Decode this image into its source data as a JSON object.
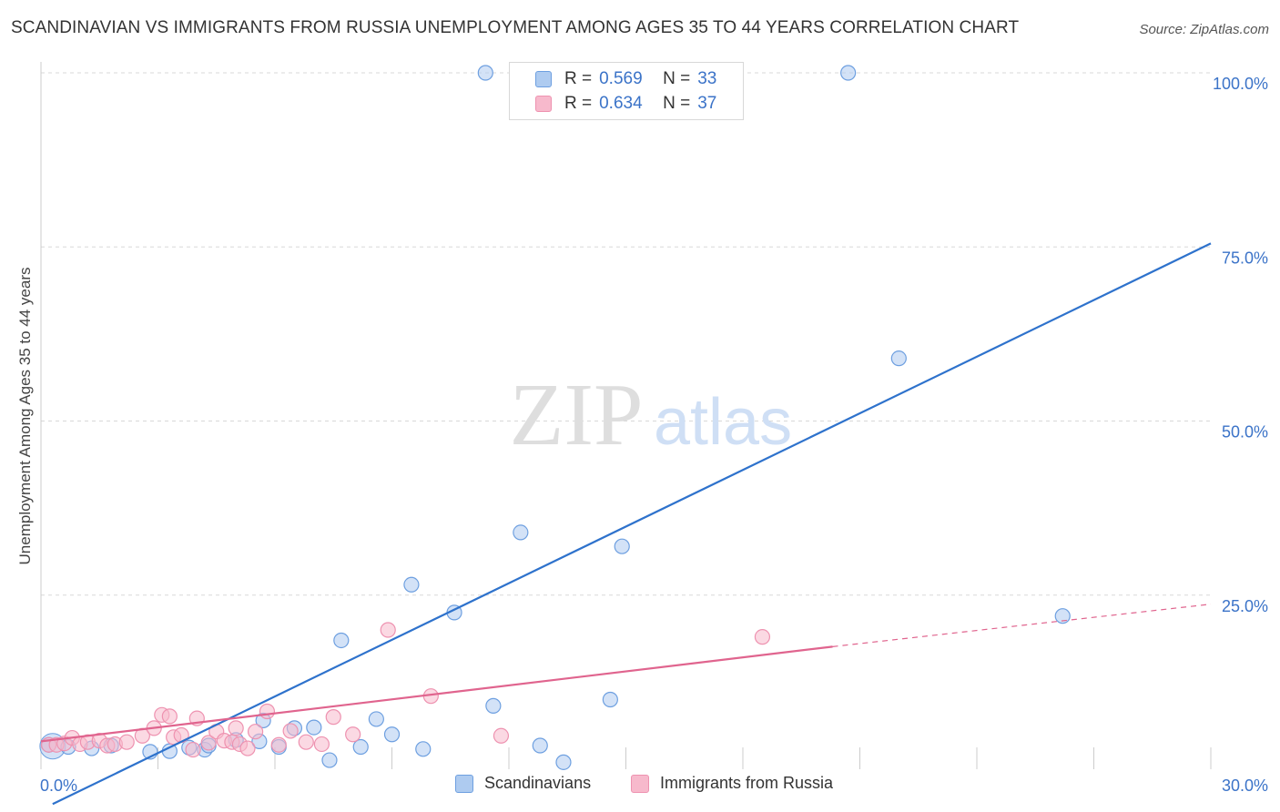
{
  "header": {
    "title": "SCANDINAVIAN VS IMMIGRANTS FROM RUSSIA UNEMPLOYMENT AMONG AGES 35 TO 44 YEARS CORRELATION CHART",
    "source": "Source: ZipAtlas.com"
  },
  "watermark": {
    "zip": "ZIP",
    "atlas": "atlas"
  },
  "legend_top": {
    "rows": [
      {
        "r_label": "R =",
        "r_value": "0.569",
        "n_label": "N =",
        "n_value": "33"
      },
      {
        "r_label": "R =",
        "r_value": "0.634",
        "n_label": "N =",
        "n_value": "37"
      }
    ]
  },
  "legend_bottom": {
    "items": [
      {
        "label": "Scandinavians"
      },
      {
        "label": "Immigrants from Russia"
      }
    ]
  },
  "colors": {
    "blue_fill": "#aecbf0",
    "blue_stroke": "#6d9fe0",
    "blue_line": "#2e72cc",
    "pink_fill": "#f7b9cc",
    "pink_stroke": "#ee92b0",
    "pink_line": "#e0648e",
    "grid": "#d8d8d8",
    "tick_label": "#3b73c8"
  },
  "chart_data": {
    "type": "scatter",
    "title": "SCANDINAVIAN VS IMMIGRANTS FROM RUSSIA UNEMPLOYMENT AMONG AGES 35 TO 44 YEARS CORRELATION CHART",
    "xlabel": "",
    "ylabel": "Unemployment Among Ages 35 to 44 years",
    "xlim": [
      0,
      30
    ],
    "ylim": [
      0,
      100
    ],
    "x_tick_labels": [
      "0.0%",
      "30.0%"
    ],
    "y_ticks": [
      25,
      50,
      75,
      100
    ],
    "y_tick_labels": [
      "25.0%",
      "50.0%",
      "75.0%",
      "100.0%"
    ],
    "grid": true,
    "series": [
      {
        "name": "Scandinavians",
        "r": 0.569,
        "n": 33,
        "points": [
          [
            0.2,
            3.5
          ],
          [
            0.7,
            3.2
          ],
          [
            1.3,
            3.0
          ],
          [
            1.8,
            3.4
          ],
          [
            2.8,
            2.5
          ],
          [
            3.3,
            2.6
          ],
          [
            3.8,
            3.1
          ],
          [
            4.2,
            2.8
          ],
          [
            4.3,
            3.4
          ],
          [
            5.0,
            4.2
          ],
          [
            5.6,
            4.0
          ],
          [
            5.7,
            7.0
          ],
          [
            6.1,
            3.2
          ],
          [
            6.5,
            5.9
          ],
          [
            7.0,
            6.0
          ],
          [
            7.4,
            1.3
          ],
          [
            7.7,
            18.5
          ],
          [
            8.2,
            3.2
          ],
          [
            8.6,
            7.2
          ],
          [
            9.0,
            5.0
          ],
          [
            9.5,
            26.5
          ],
          [
            9.8,
            2.9
          ],
          [
            10.6,
            22.5
          ],
          [
            11.6,
            9.1
          ],
          [
            11.4,
            100.0
          ],
          [
            12.3,
            34.0
          ],
          [
            12.8,
            3.4
          ],
          [
            13.4,
            1.0
          ],
          [
            14.6,
            10.0
          ],
          [
            14.9,
            32.0
          ],
          [
            20.7,
            100.0
          ],
          [
            22.0,
            59.0
          ],
          [
            26.2,
            22.0
          ]
        ],
        "trend": {
          "x": [
            0.3,
            30.0
          ],
          "y": [
            -5.0,
            75.5
          ]
        }
      },
      {
        "name": "Immigrants from Russia",
        "r": 0.634,
        "n": 37,
        "points": [
          [
            0.2,
            3.5
          ],
          [
            0.4,
            3.5
          ],
          [
            0.6,
            3.7
          ],
          [
            0.8,
            4.5
          ],
          [
            1.0,
            3.6
          ],
          [
            1.2,
            3.9
          ],
          [
            1.5,
            4.1
          ],
          [
            1.7,
            3.4
          ],
          [
            1.9,
            3.6
          ],
          [
            2.2,
            3.9
          ],
          [
            2.6,
            4.8
          ],
          [
            2.9,
            5.9
          ],
          [
            3.1,
            7.8
          ],
          [
            3.3,
            7.6
          ],
          [
            3.4,
            4.6
          ],
          [
            3.6,
            4.9
          ],
          [
            3.9,
            2.8
          ],
          [
            4.0,
            7.3
          ],
          [
            4.3,
            3.8
          ],
          [
            4.5,
            5.4
          ],
          [
            4.7,
            4.1
          ],
          [
            4.9,
            3.9
          ],
          [
            5.0,
            5.9
          ],
          [
            5.1,
            3.6
          ],
          [
            5.3,
            3.0
          ],
          [
            5.5,
            5.4
          ],
          [
            5.8,
            8.3
          ],
          [
            6.1,
            3.5
          ],
          [
            6.4,
            5.5
          ],
          [
            6.8,
            3.9
          ],
          [
            7.2,
            3.6
          ],
          [
            7.5,
            7.5
          ],
          [
            8.0,
            5.0
          ],
          [
            8.9,
            20.0
          ],
          [
            10.0,
            10.5
          ],
          [
            11.8,
            4.8
          ],
          [
            18.5,
            19.0
          ]
        ],
        "trend": {
          "x": [
            0.0,
            20.3
          ],
          "y": [
            4.0,
            17.6
          ]
        },
        "trend_ext": {
          "x": [
            20.3,
            30.0
          ],
          "y": [
            17.6,
            23.7
          ]
        }
      }
    ]
  }
}
